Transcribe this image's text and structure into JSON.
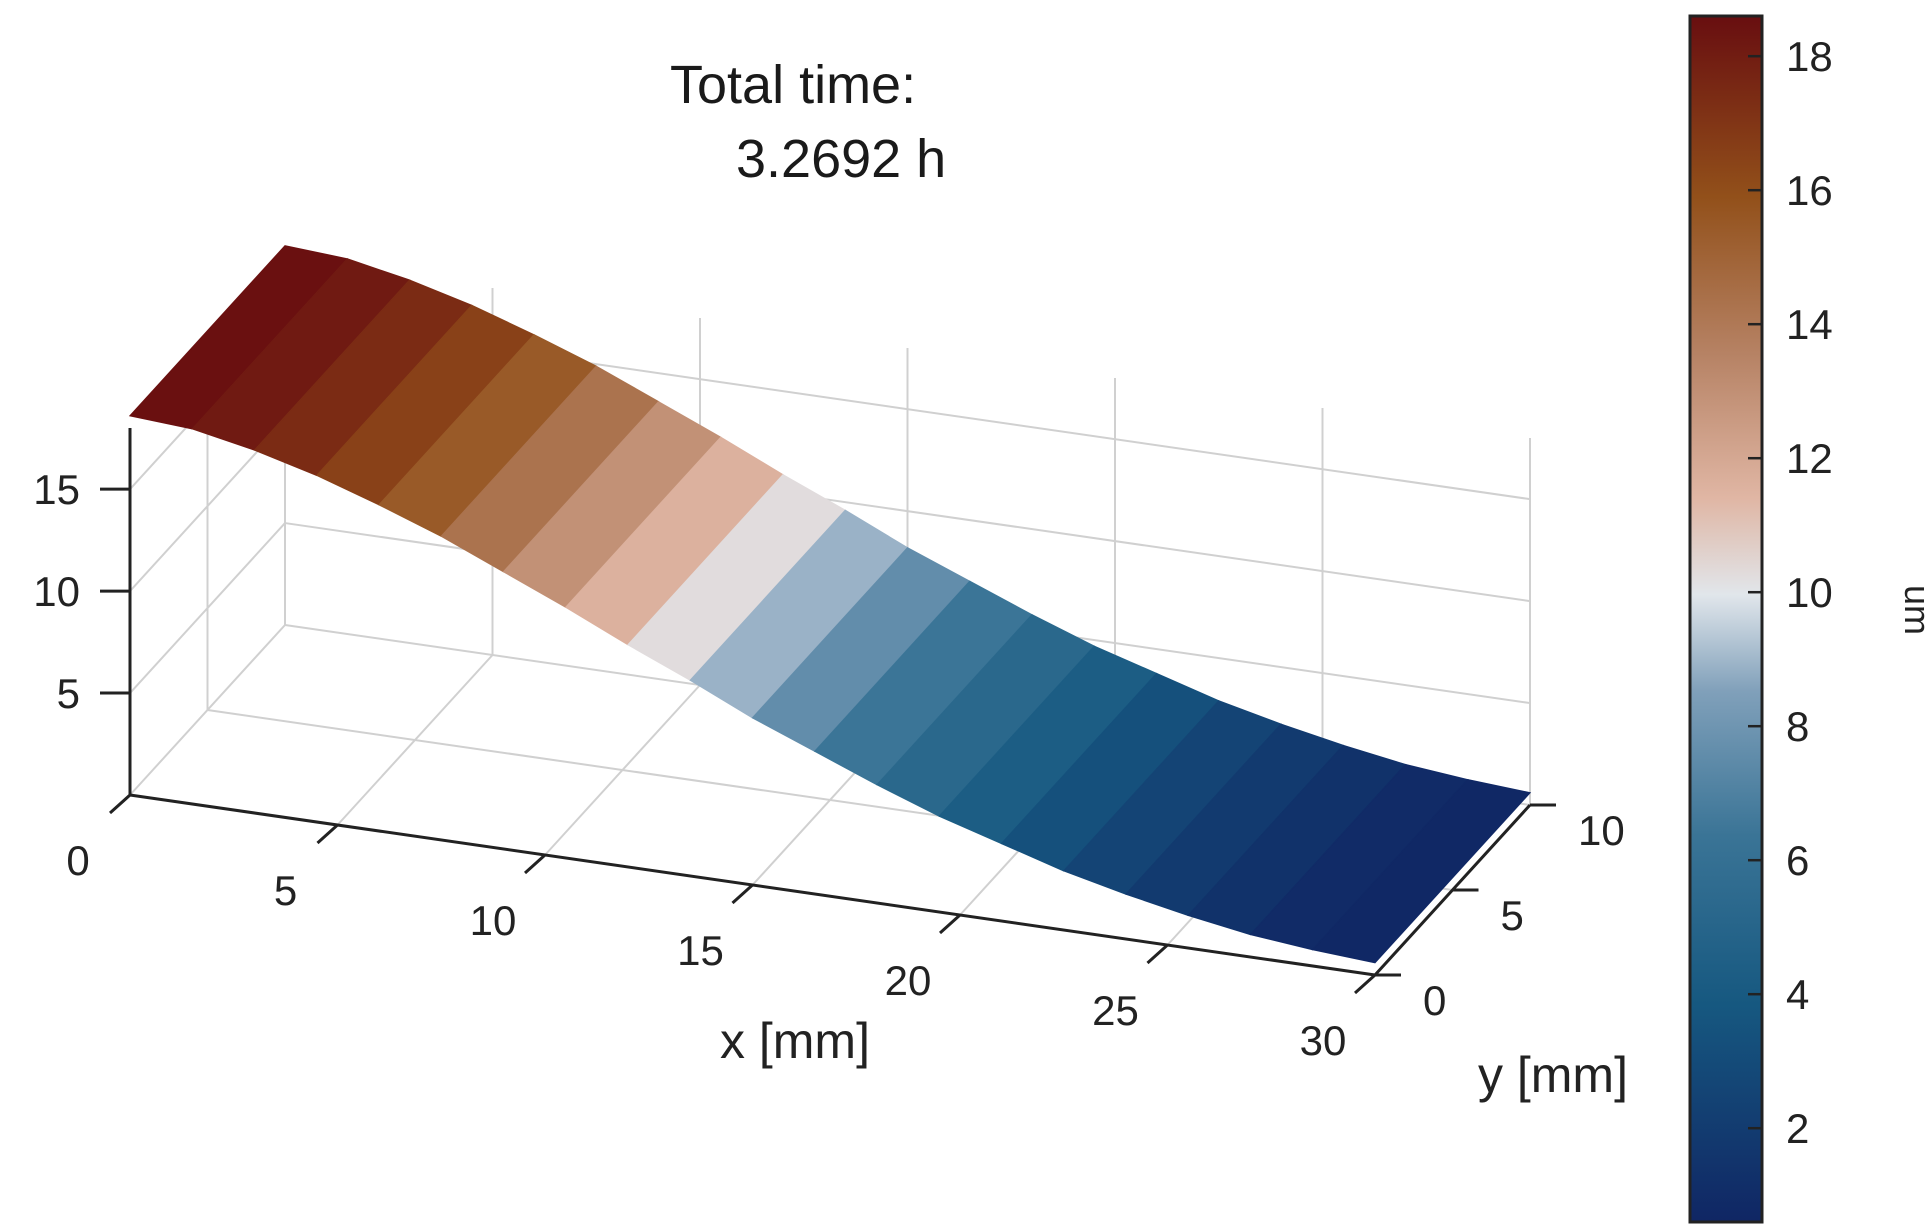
{
  "title": {
    "line1": "Total time:",
    "line2": "3.2692 h"
  },
  "chart_data": {
    "type": "surface",
    "xlabel": "x [mm]",
    "ylabel": "y [mm]",
    "colorbar_label": "um",
    "xlim": [
      0,
      30
    ],
    "ylim": [
      0,
      10
    ],
    "zlim": [
      0,
      18
    ],
    "x_ticks": [
      "0",
      "5",
      "10",
      "15",
      "20",
      "25",
      "30"
    ],
    "y_ticks": [
      "0",
      "5",
      "10"
    ],
    "z_ticks": [
      "5",
      "10",
      "15"
    ],
    "colorbar_ticks": [
      "2",
      "4",
      "6",
      "8",
      "10",
      "12",
      "14",
      "16",
      "18"
    ],
    "colorbar_range": [
      0.6,
      18.6
    ],
    "grid": true,
    "profile": {
      "description_units": "z (um) as a function of x (mm), constant along y",
      "x": [
        0,
        1.5,
        3,
        4.5,
        6,
        7.5,
        9,
        10.5,
        12,
        13.5,
        15,
        16.5,
        18,
        19.5,
        21,
        22.5,
        24,
        25.5,
        27,
        28.5,
        30
      ],
      "z": [
        18.6,
        18.4,
        17.8,
        17.0,
        16.0,
        14.9,
        13.6,
        12.3,
        10.9,
        9.6,
        8.2,
        7.0,
        5.8,
        4.7,
        3.8,
        2.9,
        2.2,
        1.6,
        1.1,
        0.8,
        0.6
      ]
    }
  }
}
